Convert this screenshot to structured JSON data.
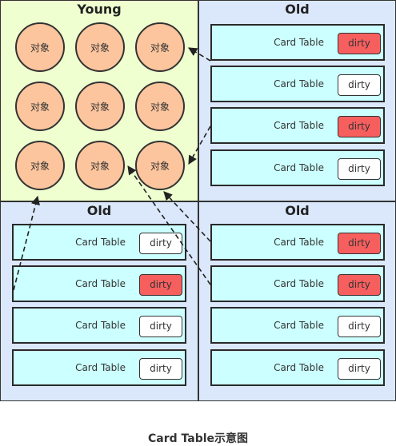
{
  "young": {
    "title": "Young",
    "objects": [
      "对象",
      "对象",
      "对象",
      "对象",
      "对象",
      "对象",
      "对象",
      "对象",
      "对象"
    ]
  },
  "old_top_right": {
    "title": "Old",
    "cards": [
      {
        "label": "Card Table",
        "flag": "dirty",
        "dirty": true
      },
      {
        "label": "Card Table",
        "flag": "dirty",
        "dirty": false
      },
      {
        "label": "Card Table",
        "flag": "dirty",
        "dirty": true
      },
      {
        "label": "Card Table",
        "flag": "dirty",
        "dirty": false
      }
    ]
  },
  "old_bottom_left": {
    "title": "Old",
    "cards": [
      {
        "label": "Card Table",
        "flag": "dirty",
        "dirty": false
      },
      {
        "label": "Card Table",
        "flag": "dirty",
        "dirty": true
      },
      {
        "label": "Card Table",
        "flag": "dirty",
        "dirty": false
      },
      {
        "label": "Card Table",
        "flag": "dirty",
        "dirty": false
      }
    ]
  },
  "old_bottom_right": {
    "title": "Old",
    "cards": [
      {
        "label": "Card Table",
        "flag": "dirty",
        "dirty": true
      },
      {
        "label": "Card Table",
        "flag": "dirty",
        "dirty": true
      },
      {
        "label": "Card Table",
        "flag": "dirty",
        "dirty": false
      },
      {
        "label": "Card Table",
        "flag": "dirty",
        "dirty": false
      }
    ]
  },
  "caption": "Card Table示意图",
  "colors": {
    "young_bg": "#efffcf",
    "old_bg": "#dbe8fb",
    "object_fill": "#fdc59d",
    "card_fill": "#ccffff",
    "dirty_marked": "#f75f5f",
    "dirty_clean": "#ffffff"
  }
}
